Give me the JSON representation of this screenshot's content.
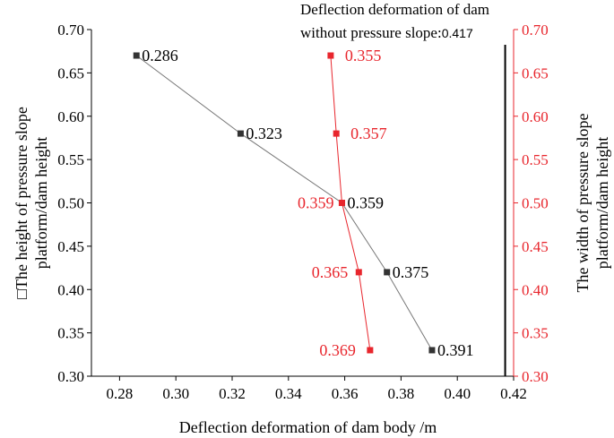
{
  "chart_data": {
    "type": "scatter",
    "xlabel": "Deflection deformation of dam body /m",
    "ylabel_left": [
      "□The height of pressure slope",
      "platform/dam height"
    ],
    "ylabel_right": [
      "The width of pressure slope",
      "platform/dam height"
    ],
    "annotation": {
      "line1": "Deflection deformation of dam",
      "line2": "without pressure slope",
      "separator": ":",
      "value": "0.417"
    },
    "xlim": [
      0.27,
      0.42
    ],
    "ylim": [
      0.3,
      0.7
    ],
    "x_ticks": [
      "0.28",
      "0.30",
      "0.32",
      "0.34",
      "0.36",
      "0.38",
      "0.40",
      "0.42"
    ],
    "y_ticks": [
      "0.30",
      "0.35",
      "0.40",
      "0.45",
      "0.50",
      "0.55",
      "0.60",
      "0.65",
      "0.70"
    ],
    "reference_line_x": 0.417,
    "colors": {
      "height": "#333333",
      "width": "#e8262d",
      "axis": "#000000"
    },
    "series": [
      {
        "key": "height",
        "x": [
          0.286,
          0.323,
          0.359,
          0.375,
          0.391
        ],
        "y": [
          0.67,
          0.58,
          0.5,
          0.42,
          0.33
        ],
        "labels": [
          "0.286",
          "0.323",
          "0.359",
          "0.375",
          "0.391"
        ]
      },
      {
        "key": "width",
        "x": [
          0.355,
          0.357,
          0.359,
          0.365,
          0.369
        ],
        "y": [
          0.67,
          0.58,
          0.5,
          0.42,
          0.33
        ],
        "labels": [
          "0.355",
          "0.357",
          "0.359",
          "0.365",
          "0.369"
        ]
      }
    ]
  }
}
